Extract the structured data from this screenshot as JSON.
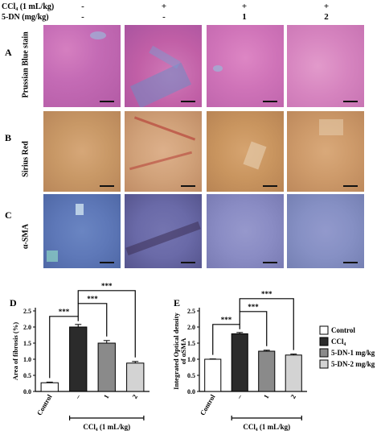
{
  "header": {
    "row1_label": "CCl₄ (1 mL/kg)",
    "row2_label": "5-DN (mg/kg)",
    "row1_values": [
      "-",
      "+",
      "+",
      "+"
    ],
    "row2_values": [
      "-",
      "-",
      "1",
      "2"
    ]
  },
  "rows": [
    {
      "letter": "A",
      "title": "Prussian Blue stain"
    },
    {
      "letter": "B",
      "title": "Sirius Red"
    },
    {
      "letter": "C",
      "title": "α-SMA"
    }
  ],
  "panel_colors": {
    "A": [
      "#c46bb5",
      "#c15fa6",
      "#cf73b8",
      "#d684bf"
    ],
    "B": [
      "#c89866",
      "#d1a27a",
      "#c9955f",
      "#cd9a6a"
    ],
    "C": [
      "#5e78b8",
      "#6a6aa8",
      "#8a8cc4",
      "#8690c4"
    ]
  },
  "chart_data": [
    {
      "panel": "D",
      "type": "bar",
      "categories": [
        "Control",
        "–",
        "1",
        "2"
      ],
      "values": [
        0.27,
        2.0,
        1.5,
        0.88
      ],
      "errors": [
        0.02,
        0.08,
        0.08,
        0.05
      ],
      "ylabel": "Area of fibrosis (%)",
      "xlabel": "CCl₄ (1 mL/kg)",
      "ylim": [
        0,
        2.5
      ],
      "yticks": [
        "0.0",
        "0.5",
        "1.0",
        "1.5",
        "2.0",
        "2.5"
      ],
      "significance": [
        "***",
        "***",
        "***"
      ],
      "bar_colors": [
        "#ffffff",
        "#2b2b2b",
        "#8a8a8a",
        "#d3d3d3"
      ]
    },
    {
      "panel": "E",
      "type": "bar",
      "categories": [
        "Control",
        "–",
        "1",
        "2"
      ],
      "values": [
        1.0,
        1.79,
        1.25,
        1.13
      ],
      "errors": [
        0.01,
        0.04,
        0.03,
        0.03
      ],
      "ylabel": "Integrated Optical density of αSMA",
      "xlabel": "CCl₄ (1 mL/kg)",
      "ylim": [
        0,
        2.5
      ],
      "yticks": [
        "0.0",
        "0.5",
        "1.0",
        "1.5",
        "2.0",
        "2.5"
      ],
      "significance": [
        "***",
        "***",
        "***"
      ],
      "bar_colors": [
        "#ffffff",
        "#2b2b2b",
        "#8a8a8a",
        "#d3d3d3"
      ]
    }
  ],
  "legend": [
    {
      "label": "Control",
      "color": "#ffffff"
    },
    {
      "label": "CCl₄",
      "color": "#2b2b2b"
    },
    {
      "label": "5-DN-1 mg/kg",
      "color": "#8a8a8a"
    },
    {
      "label": "5-DN-2 mg/kg",
      "color": "#d3d3d3"
    }
  ]
}
